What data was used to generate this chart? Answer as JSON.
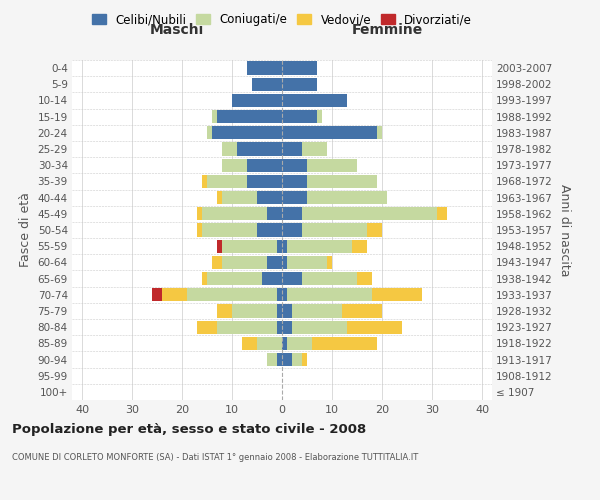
{
  "age_groups": [
    "100+",
    "95-99",
    "90-94",
    "85-89",
    "80-84",
    "75-79",
    "70-74",
    "65-69",
    "60-64",
    "55-59",
    "50-54",
    "45-49",
    "40-44",
    "35-39",
    "30-34",
    "25-29",
    "20-24",
    "15-19",
    "10-14",
    "5-9",
    "0-4"
  ],
  "birth_years": [
    "≤ 1907",
    "1908-1912",
    "1913-1917",
    "1918-1922",
    "1923-1927",
    "1928-1932",
    "1933-1937",
    "1938-1942",
    "1943-1947",
    "1948-1952",
    "1953-1957",
    "1958-1962",
    "1963-1967",
    "1968-1972",
    "1973-1977",
    "1978-1982",
    "1983-1987",
    "1988-1992",
    "1993-1997",
    "1998-2002",
    "2003-2007"
  ],
  "maschi": {
    "celibi": [
      0,
      0,
      1,
      0,
      1,
      1,
      1,
      4,
      3,
      1,
      5,
      3,
      5,
      7,
      7,
      9,
      14,
      13,
      10,
      6,
      7
    ],
    "coniugati": [
      0,
      0,
      2,
      5,
      12,
      9,
      18,
      11,
      9,
      11,
      11,
      13,
      7,
      8,
      5,
      3,
      1,
      1,
      0,
      0,
      0
    ],
    "vedovi": [
      0,
      0,
      0,
      3,
      4,
      3,
      5,
      1,
      2,
      0,
      1,
      1,
      1,
      1,
      0,
      0,
      0,
      0,
      0,
      0,
      0
    ],
    "divorziati": [
      0,
      0,
      0,
      0,
      0,
      0,
      2,
      0,
      0,
      1,
      0,
      0,
      0,
      0,
      0,
      0,
      0,
      0,
      0,
      0,
      0
    ]
  },
  "femmine": {
    "nubili": [
      0,
      0,
      2,
      1,
      2,
      2,
      1,
      4,
      1,
      1,
      4,
      4,
      5,
      5,
      5,
      4,
      19,
      7,
      13,
      7,
      7
    ],
    "coniugate": [
      0,
      0,
      2,
      5,
      11,
      10,
      17,
      11,
      8,
      13,
      13,
      27,
      16,
      14,
      10,
      5,
      1,
      1,
      0,
      0,
      0
    ],
    "vedove": [
      0,
      0,
      1,
      13,
      11,
      8,
      10,
      3,
      1,
      3,
      3,
      2,
      0,
      0,
      0,
      0,
      0,
      0,
      0,
      0,
      0
    ],
    "divorziate": [
      0,
      0,
      0,
      0,
      0,
      0,
      0,
      0,
      0,
      0,
      0,
      0,
      0,
      0,
      0,
      0,
      0,
      0,
      0,
      0,
      0
    ]
  },
  "colors": {
    "celibi": "#4472a8",
    "coniugati": "#c5d9a0",
    "vedovi": "#f5c842",
    "divorziati": "#c0292b"
  },
  "xlim": 42,
  "title": "Popolazione per età, sesso e stato civile - 2008",
  "subtitle": "COMUNE DI CORLETO MONFORTE (SA) - Dati ISTAT 1° gennaio 2008 - Elaborazione TUTTITALIA.IT",
  "ylabel": "Fasce di età",
  "ylabel_right": "Anni di nascita",
  "legend_labels": [
    "Celibi/Nubili",
    "Coniugati/e",
    "Vedovi/e",
    "Divorziati/e"
  ],
  "maschi_label": "Maschi",
  "femmine_label": "Femmine",
  "bg_color": "#f5f5f5",
  "plot_bg_color": "#ffffff"
}
